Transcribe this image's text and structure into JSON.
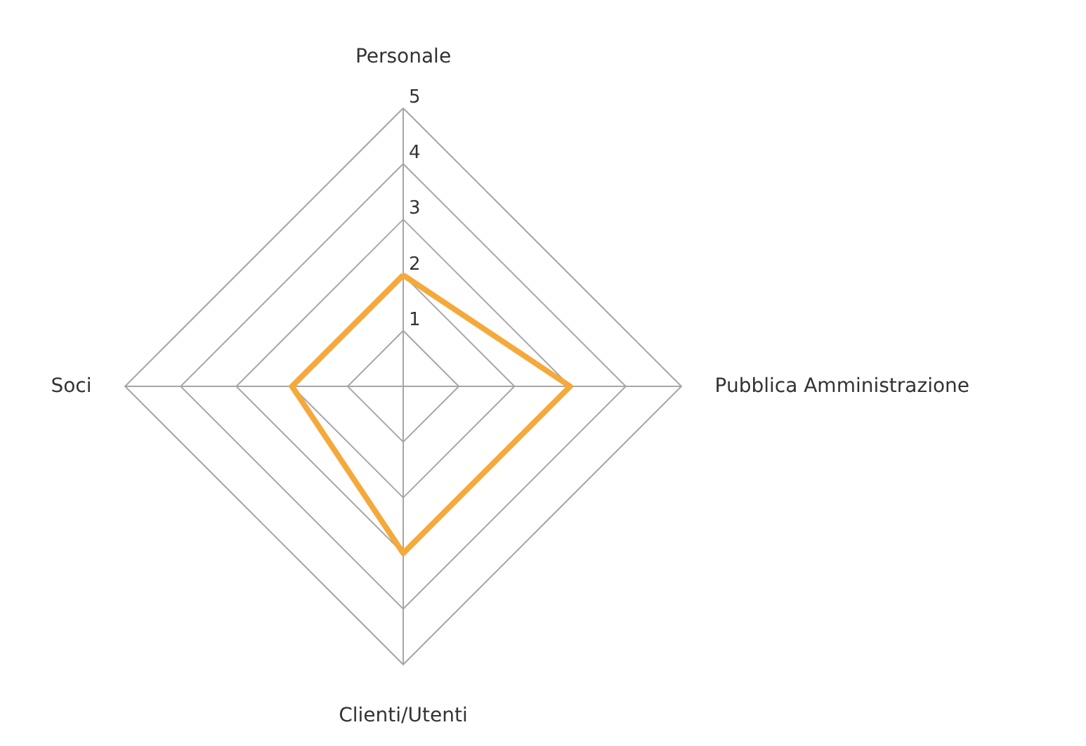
{
  "chart_data": {
    "type": "radar",
    "categories": [
      "Personale",
      "Pubblica Amministrazione",
      "Clienti/Utenti",
      "Soci"
    ],
    "series": [
      {
        "color": "#f5a93a",
        "values": [
          2,
          3,
          3,
          2
        ]
      }
    ],
    "ylim": [
      0,
      5
    ],
    "yticks": [
      1,
      2,
      3,
      4,
      5
    ],
    "grid": true
  }
}
